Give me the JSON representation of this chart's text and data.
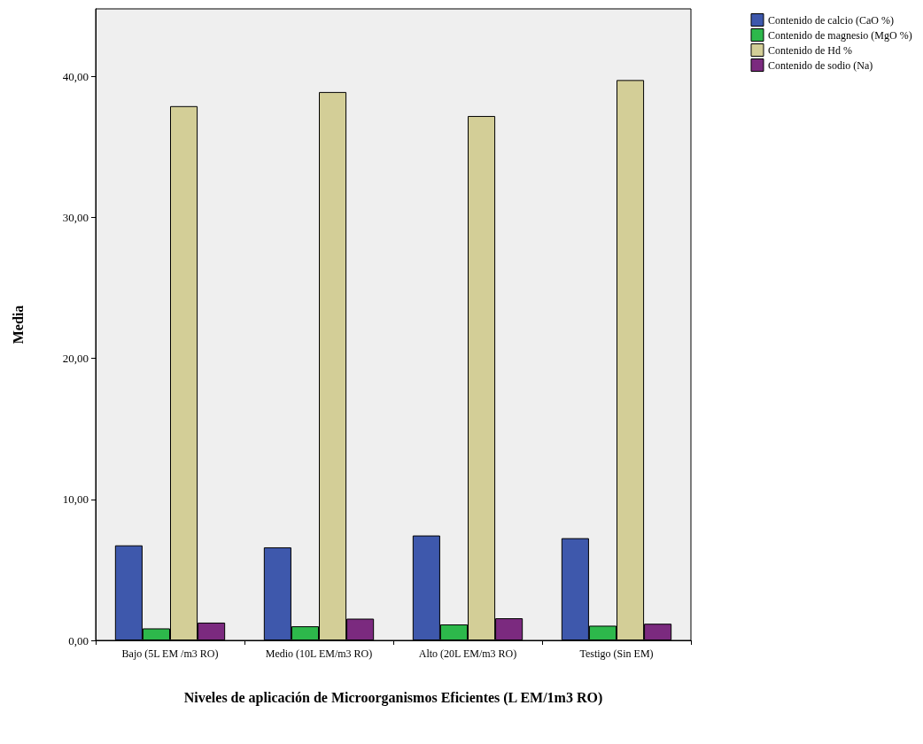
{
  "chart_data": {
    "type": "bar",
    "xlabel": "Niveles de aplicación de Microorganismos Eficientes (L EM/1m3 RO)",
    "ylabel": "Media",
    "categories": [
      "Bajo (5L EM /m3 RO)",
      "Medio (10L EM/m3 RO)",
      "Alto (20L EM/m3 RO)",
      "Testigo (Sin EM)"
    ],
    "series": [
      {
        "name": "Contenido de calcio (CaO %)",
        "color": "#3e58ac",
        "values": [
          6.74,
          6.6,
          7.44,
          7.25
        ]
      },
      {
        "name": "Contenido de magnesio (MgO %)",
        "color": "#2db84b",
        "values": [
          0.85,
          1.0,
          1.13,
          1.04
        ]
      },
      {
        "name": "Contenido de Hd %",
        "color": "#d3ce97",
        "values": [
          37.9,
          38.9,
          37.2,
          39.75
        ]
      },
      {
        "name": "Contenido de sodio (Na)",
        "color": "#7b2a7f",
        "values": [
          1.26,
          1.54,
          1.57,
          1.18
        ]
      }
    ],
    "ylim": [
      0,
      44.8
    ],
    "yticks": [
      {
        "value": 0,
        "label": "0,00"
      },
      {
        "value": 10,
        "label": "10,00"
      },
      {
        "value": 20,
        "label": "20,00"
      },
      {
        "value": 30,
        "label": "30,00"
      },
      {
        "value": 40,
        "label": "40,00"
      }
    ],
    "grid": false,
    "legend": "top right"
  }
}
